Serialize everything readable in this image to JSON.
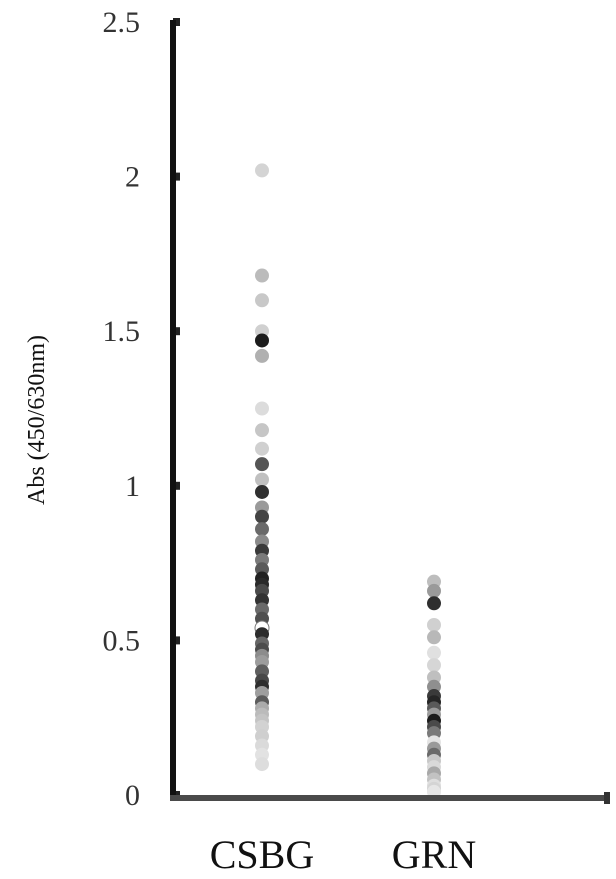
{
  "chart_data": {
    "type": "scatter",
    "title": "",
    "xlabel": "",
    "ylabel": "Abs (450/630nm)",
    "categories": [
      "CSBG",
      "GRN"
    ],
    "ylim": [
      0,
      2.5
    ],
    "yticks": [
      "0",
      "0.5",
      "1",
      "1.5",
      "2",
      "2.5"
    ],
    "grid": false,
    "legend": "none",
    "series": [
      {
        "category": "CSBG",
        "values": [
          2.02,
          1.68,
          1.6,
          1.5,
          1.47,
          1.42,
          1.25,
          1.18,
          1.12,
          1.07,
          1.02,
          0.98,
          0.93,
          0.9,
          0.86,
          0.82,
          0.79,
          0.76,
          0.73,
          0.7,
          0.68,
          0.66,
          0.63,
          0.6,
          0.57,
          0.54,
          0.52,
          0.49,
          0.47,
          0.45,
          0.43,
          0.4,
          0.37,
          0.35,
          0.33,
          0.3,
          0.28,
          0.26,
          0.24,
          0.22,
          0.19,
          0.16,
          0.13,
          0.1
        ],
        "colors": [
          "#d4d4d4",
          "#bbbbbb",
          "#c8c8c8",
          "#d0d0d0",
          "#1c1c1c",
          "#b0b0b0",
          "#dcdcdc",
          "#c6c6c6",
          "#d0d0d0",
          "#555555",
          "#c0c0c0",
          "#303030",
          "#9a9a9a",
          "#444444",
          "#6a6a6a",
          "#8a8a8a",
          "#3a3a3a",
          "#7a7a7a",
          "#5a5a5a",
          "#222222",
          "#2a2a2a",
          "#4a4a4a",
          "#333333",
          "#6a6a6a",
          "#505050",
          "#ffffff",
          "#2c2c2c",
          "#666666",
          "#4c4c4c",
          "#8c8c8c",
          "#9c9c9c",
          "#5e5e5e",
          "#474747",
          "#2e2e2e",
          "#9e9e9e",
          "#5c5c5c",
          "#ababab",
          "#bbbbbb",
          "#c4c4c4",
          "#d2d2d2",
          "#cfcfcf",
          "#dadada",
          "#e2e2e2",
          "#dddddd"
        ]
      },
      {
        "category": "GRN",
        "values": [
          0.69,
          0.66,
          0.62,
          0.55,
          0.51,
          0.46,
          0.42,
          0.38,
          0.35,
          0.32,
          0.3,
          0.28,
          0.26,
          0.24,
          0.22,
          0.2,
          0.17,
          0.15,
          0.13,
          0.11,
          0.09,
          0.07,
          0.05,
          0.03,
          0.02,
          0.01
        ],
        "colors": [
          "#bdbdbd",
          "#9a9a9a",
          "#2e2e2e",
          "#d0d0d0",
          "#b8b8b8",
          "#e0e0e0",
          "#d6d6d6",
          "#bfbfbf",
          "#8f8f8f",
          "#3a3a3a",
          "#262626",
          "#5a5a5a",
          "#9c9c9c",
          "#1c1c1c",
          "#4a4a4a",
          "#7a7a7a",
          "#e4e4e4",
          "#9a9a9a",
          "#6a6a6a",
          "#c8c8c8",
          "#d9d9d9",
          "#a8a8a8",
          "#c2c2c2",
          "#dedede",
          "#d4d4d4",
          "#e6e6e6"
        ]
      }
    ]
  }
}
